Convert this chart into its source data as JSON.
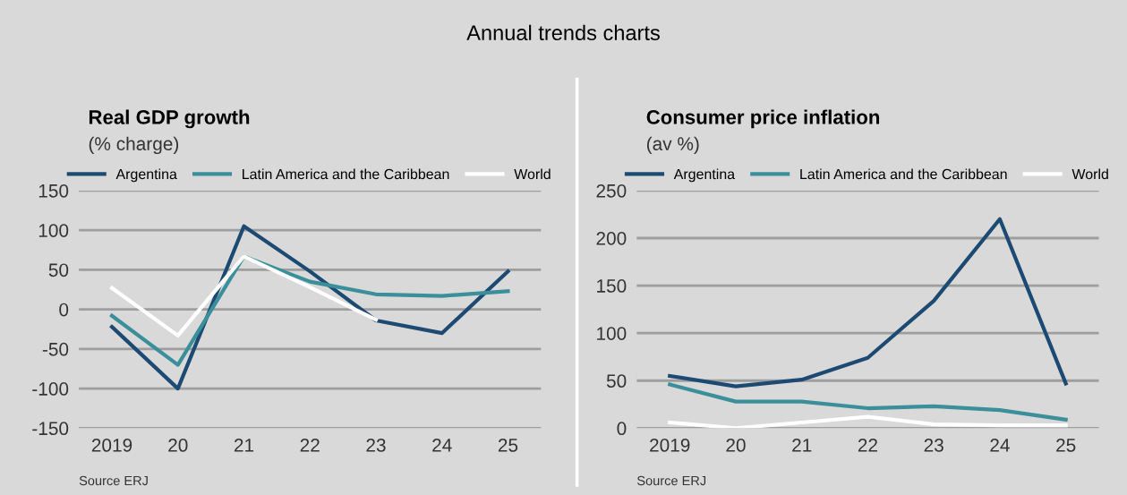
{
  "chart_data": [
    {
      "type": "line",
      "title": "Real GDP growth",
      "subtitle": "(% charge)",
      "annotations": [
        "Annual trends charts",
        "Source ERJ"
      ],
      "categories": [
        "2019",
        "20",
        "21",
        "22",
        "23",
        "24",
        "25"
      ],
      "series": [
        {
          "name": "Argentina",
          "color": "#1d4a72",
          "values": [
            -22,
            -100,
            105,
            48,
            -14,
            -30,
            48
          ]
        },
        {
          "name": "Latin America and the Caribbean",
          "color": "#3a8f9a",
          "values": [
            -8,
            -70,
            67,
            35,
            19,
            17,
            23
          ]
        },
        {
          "name": "World",
          "color": "#ffffff",
          "values": [
            27,
            -33,
            67,
            28,
            -13,
            null,
            null
          ]
        }
      ],
      "ylim": [
        -150,
        150
      ],
      "yticks": [
        -150,
        -100,
        -50,
        0,
        50,
        100,
        150
      ],
      "grid": "y",
      "legend": "top",
      "marker": "none",
      "line_style": "solid"
    },
    {
      "type": "line",
      "title": "Consumer price inflation",
      "subtitle": "(av %)",
      "annotations": [
        "Source ERJ"
      ],
      "categories": [
        "2019",
        "20",
        "21",
        "22",
        "23",
        "24",
        "25"
      ],
      "series": [
        {
          "name": "Argentina",
          "color": "#1d4a72",
          "values": [
            55,
            44,
            51,
            74,
            134,
            220,
            47
          ]
        },
        {
          "name": "Latin America and the Caribbean",
          "color": "#3a8f9a",
          "values": [
            46,
            28,
            28,
            21,
            23,
            19,
            9
          ]
        },
        {
          "name": "World",
          "color": "#ffffff",
          "values": [
            6,
            0,
            6,
            12,
            4,
            3,
            3
          ]
        }
      ],
      "ylim": [
        0,
        250
      ],
      "yticks": [
        0,
        50,
        100,
        150,
        200,
        250
      ],
      "grid": "y",
      "legend": "top",
      "marker": "none",
      "line_style": "solid"
    }
  ]
}
